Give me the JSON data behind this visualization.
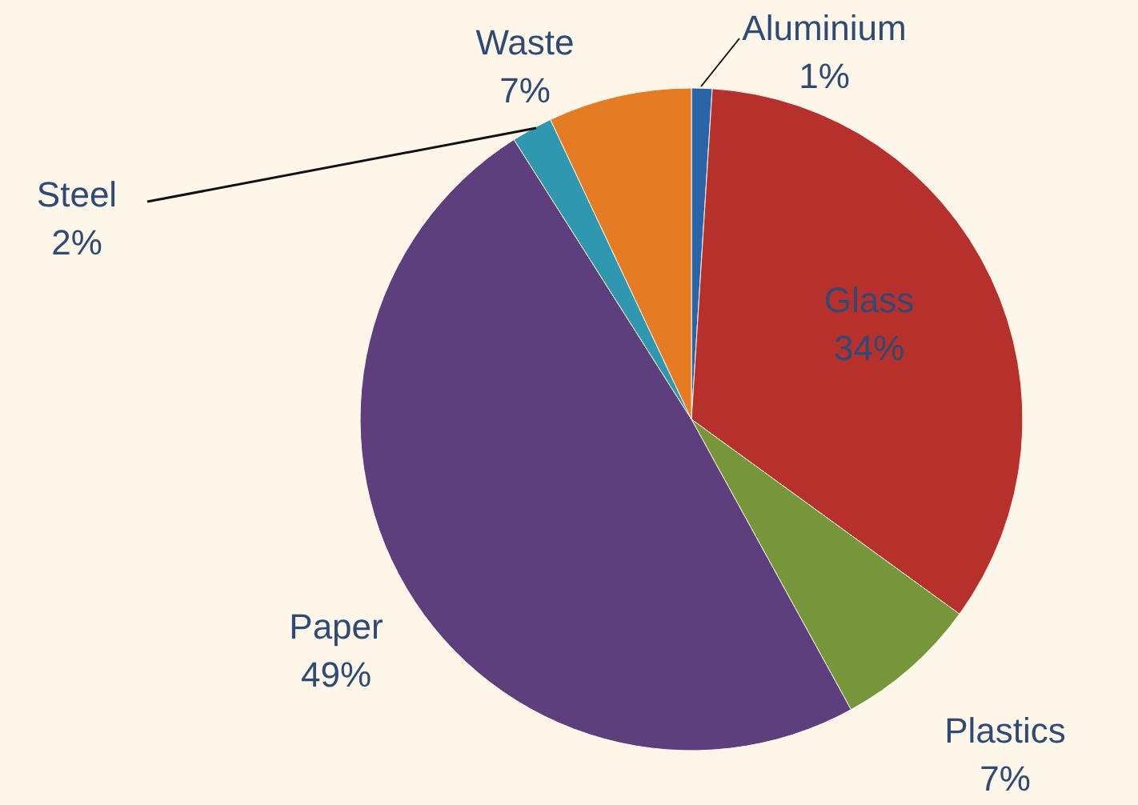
{
  "chart_data": {
    "type": "pie",
    "categories": [
      "Aluminium",
      "Glass",
      "Plastics",
      "Paper",
      "Steel",
      "Waste"
    ],
    "values": [
      1,
      34,
      7,
      49,
      2,
      7
    ],
    "colors": [
      "#2a64a8",
      "#b7312c",
      "#77963a",
      "#5e3f7e",
      "#2f98b0",
      "#e57b22"
    ],
    "value_labels": [
      "1%",
      "34%",
      "7%",
      "49%",
      "2%",
      "7%"
    ]
  }
}
